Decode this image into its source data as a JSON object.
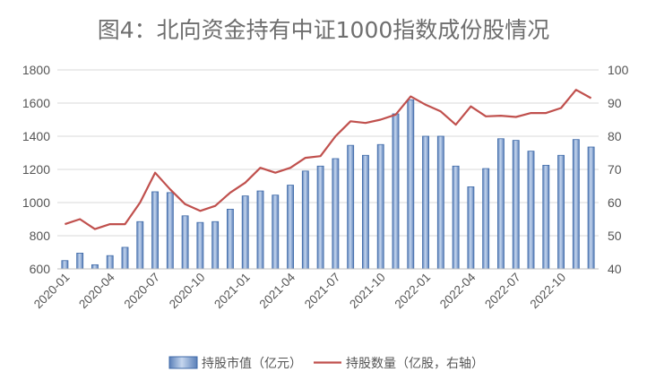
{
  "chart_data": {
    "type": "bar+line",
    "title": "图4：北向资金持有中证1000指数成份股情况",
    "categories": [
      "2020-01",
      "2020-02",
      "2020-03",
      "2020-04",
      "2020-05",
      "2020-06",
      "2020-07",
      "2020-08",
      "2020-09",
      "2020-10",
      "2020-11",
      "2020-12",
      "2021-01",
      "2021-02",
      "2021-03",
      "2021-04",
      "2021-05",
      "2021-06",
      "2021-07",
      "2021-08",
      "2021-09",
      "2021-10",
      "2021-11",
      "2021-12",
      "2022-01",
      "2022-02",
      "2022-03",
      "2022-04",
      "2022-05",
      "2022-06",
      "2022-07",
      "2022-08",
      "2022-09",
      "2022-10",
      "2022-11",
      "2022-12"
    ],
    "x_tick_labels": [
      "2020-01",
      "2020-04",
      "2020-07",
      "2020-10",
      "2021-01",
      "2021-04",
      "2021-07",
      "2021-10",
      "2022-01",
      "2022-04",
      "2022-07",
      "2022-10"
    ],
    "y_left": {
      "ticks": [
        "600",
        "800",
        "1000",
        "1200",
        "1400",
        "1600",
        "1800"
      ],
      "range": [
        600,
        1800
      ]
    },
    "y_right": {
      "ticks": [
        "40",
        "50",
        "60",
        "70",
        "80",
        "90",
        "100"
      ],
      "range": [
        40,
        100
      ]
    },
    "series": [
      {
        "name": "持股市值（亿元）",
        "type": "bar",
        "axis": "left",
        "color": "#6f94c8",
        "values": [
          650,
          695,
          625,
          680,
          730,
          885,
          1065,
          1060,
          920,
          880,
          885,
          960,
          1040,
          1070,
          1045,
          1105,
          1190,
          1220,
          1265,
          1345,
          1285,
          1350,
          1535,
          1620,
          1400,
          1400,
          1220,
          1095,
          1205,
          1385,
          1375,
          1310,
          1225,
          1285,
          1380,
          1335
        ]
      },
      {
        "name": "持股数量（亿股，右轴）",
        "type": "line",
        "axis": "right",
        "color": "#c0504d",
        "values": [
          53.5,
          55,
          52,
          53.5,
          53.5,
          60,
          69,
          64,
          59.5,
          57.5,
          59,
          63,
          66,
          70.5,
          69,
          70.5,
          73.5,
          74,
          80,
          84.5,
          84,
          85,
          86.5,
          92,
          89.5,
          87.5,
          83.5,
          89,
          86,
          86.2,
          85.8,
          87,
          87,
          88.5,
          94,
          91.5
        ]
      }
    ],
    "legend_position": "bottom",
    "grid": "horizontal"
  }
}
